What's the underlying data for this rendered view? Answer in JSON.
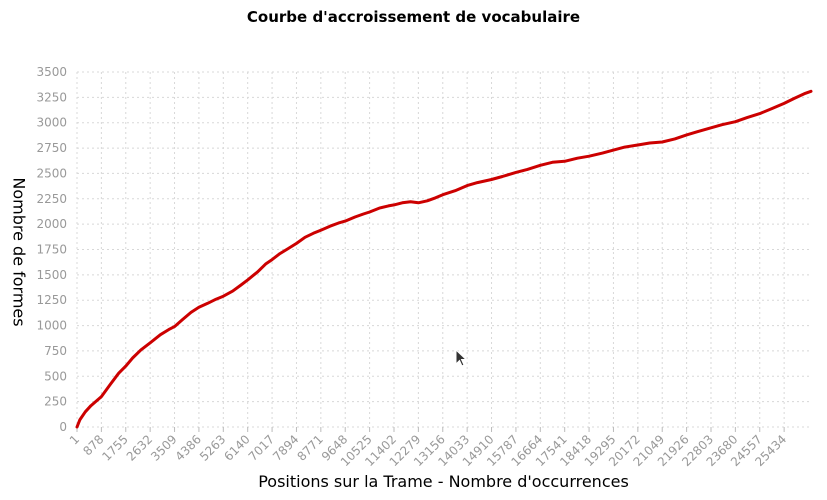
{
  "chart_data": {
    "type": "line",
    "title": "Courbe d'accroissement de vocabulaire",
    "xlabel": "Positions sur la Trame - Nombre d'occurrences",
    "ylabel": "Nombre de formes",
    "xlim": [
      1,
      26400
    ],
    "ylim": [
      0,
      3500
    ],
    "x_ticks": [
      1,
      878,
      1755,
      2632,
      3509,
      4386,
      5263,
      6140,
      7017,
      7894,
      8771,
      9648,
      10525,
      11402,
      12279,
      13156,
      14033,
      14910,
      15787,
      16664,
      17541,
      18418,
      19295,
      20172,
      21049,
      21926,
      22803,
      23680,
      24557,
      25434
    ],
    "y_ticks": [
      0,
      250,
      500,
      750,
      1000,
      1250,
      1500,
      1750,
      2000,
      2250,
      2500,
      2750,
      3000,
      3250,
      3500
    ],
    "grid": true,
    "line_color": "#cc0000",
    "series": [
      {
        "x": [
          1,
          100,
          300,
          500,
          878,
          1200,
          1500,
          1755,
          2000,
          2300,
          2632,
          3000,
          3300,
          3509,
          3800,
          4100,
          4386,
          4700,
          5000,
          5263,
          5600,
          5900,
          6140,
          6500,
          6800,
          7017,
          7300,
          7600,
          7894,
          8200,
          8500,
          8771,
          9100,
          9400,
          9648,
          10000,
          10300,
          10525,
          10900,
          11200,
          11402,
          11700,
          12000,
          12279,
          12600,
          12900,
          13156,
          13600,
          14033,
          14400,
          14910,
          15300,
          15787,
          16200,
          16664,
          17100,
          17541,
          18000,
          18418,
          18900,
          19295,
          19700,
          20172,
          20600,
          21049,
          21500,
          21926,
          22300,
          22803,
          23200,
          23680,
          24100,
          24557,
          25000,
          25434,
          25800,
          26200,
          26400
        ],
        "y": [
          0,
          70,
          150,
          210,
          300,
          420,
          530,
          600,
          680,
          760,
          830,
          910,
          960,
          990,
          1060,
          1130,
          1180,
          1220,
          1260,
          1290,
          1340,
          1400,
          1450,
          1530,
          1610,
          1650,
          1710,
          1760,
          1810,
          1870,
          1910,
          1940,
          1980,
          2010,
          2030,
          2070,
          2100,
          2120,
          2160,
          2180,
          2190,
          2210,
          2220,
          2210,
          2230,
          2260,
          2290,
          2330,
          2380,
          2410,
          2440,
          2470,
          2510,
          2540,
          2580,
          2610,
          2620,
          2650,
          2670,
          2700,
          2730,
          2760,
          2780,
          2800,
          2810,
          2840,
          2880,
          2910,
          2950,
          2980,
          3010,
          3050,
          3090,
          3140,
          3190,
          3240,
          3290,
          3310
        ]
      }
    ]
  },
  "cursor_icon": "mouse-pointer-icon"
}
